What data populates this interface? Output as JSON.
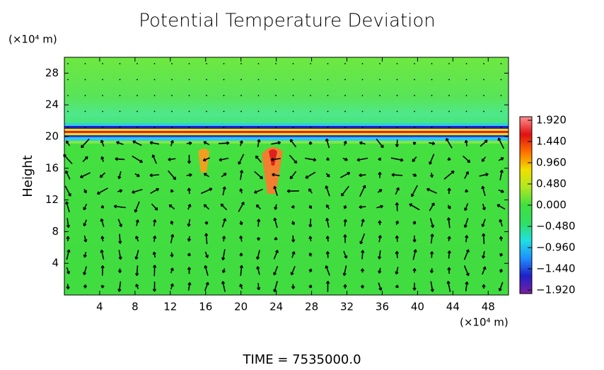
{
  "chart_data": {
    "type": "vector-field",
    "title": "Potential Temperature Deviation",
    "y_unit": "(×10⁴ m)",
    "ylabel": "Height",
    "x_unit": "(×10⁴ m)",
    "annotation": "TIME  =  7535000.0",
    "xlim": [
      0,
      50.3
    ],
    "xticks": [
      4,
      8,
      12,
      16,
      20,
      24,
      28,
      32,
      36,
      40,
      44,
      48
    ],
    "ylim": [
      0,
      30
    ],
    "yticks": [
      4,
      8,
      12,
      16,
      20,
      24,
      28
    ],
    "colorbar": {
      "lim": [
        -2,
        2
      ],
      "ticks": [
        {
          "value": 1.92,
          "label": "1.920"
        },
        {
          "value": 1.44,
          "label": "1.440"
        },
        {
          "value": 0.96,
          "label": "0.960"
        },
        {
          "value": 0.48,
          "label": "0.480"
        },
        {
          "value": 0,
          "label": "0.000"
        },
        {
          "value": -0.48,
          "label": "−0.480"
        },
        {
          "value": -0.96,
          "label": "−0.960"
        },
        {
          "value": -1.44,
          "label": "−1.440"
        },
        {
          "value": -1.92,
          "label": "−1.920"
        }
      ],
      "colormap": [
        "#7a1fa0",
        "#2020c8",
        "#1e90ff",
        "#20e0e0",
        "#30e060",
        "#40e040",
        "#b0e820",
        "#f0e000",
        "#ff7000",
        "#e01010",
        "#ff9090"
      ]
    }
  }
}
